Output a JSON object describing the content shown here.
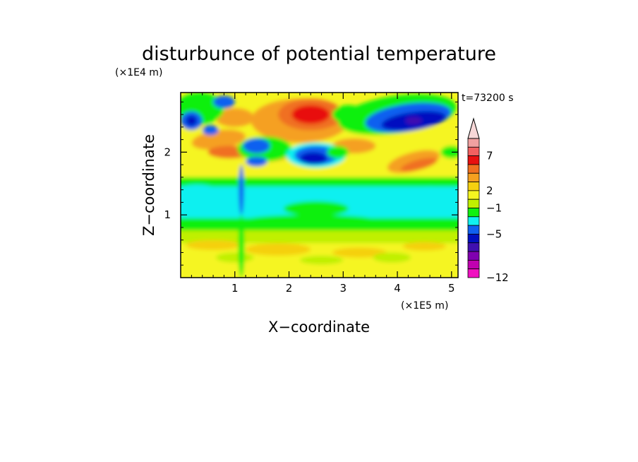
{
  "chart_data": {
    "type": "heatmap",
    "title": "disturbunce of potential temperature",
    "xlabel": "X−coordinate",
    "ylabel": "Z−coordinate",
    "x_unit": "(×1E5 m)",
    "y_unit": "(×1E4 m)",
    "time_label": "t=73200 s",
    "x_ticks": [
      "1",
      "2",
      "3",
      "4",
      "5"
    ],
    "y_ticks": [
      "1",
      "2"
    ],
    "xlim": [
      0,
      5.12
    ],
    "ylim": [
      0,
      2.95
    ],
    "colorbar": {
      "labels": [
        "7",
        "2",
        "−1",
        "−5",
        "−12"
      ],
      "colors": [
        "#f0a0a0",
        "#f26060",
        "#e81010",
        "#f07020",
        "#f5a020",
        "#f5d010",
        "#f5f520",
        "#c0f000",
        "#10f010",
        "#10f0f0",
        "#1060f0",
        "#0010c0",
        "#4010b0",
        "#8000b0",
        "#c000b0",
        "#f010c0"
      ],
      "extend": "max"
    }
  }
}
